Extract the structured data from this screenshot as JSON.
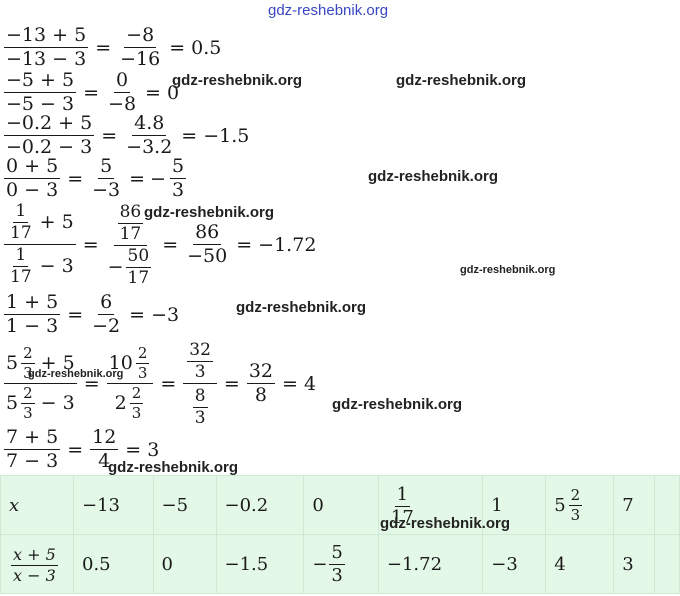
{
  "watermarks": {
    "top": "gdz-reshebnik.org",
    "w1": "gdz-reshebnik.org",
    "w2": "gdz-reshebnik.org",
    "w3": "gdz-reshebnik.org",
    "w4": "gdz-reshebnik.org",
    "w5": "gdz-reshebnik.org",
    "w6": "gdz-reshebnik.org",
    "w7": "gdz-reshebnik.org",
    "w8": "gdz-reshebnik.org",
    "w9": "gdz-reshebnik.org",
    "w10": "gdz-reshebnik.org"
  },
  "equations": {
    "e1": {
      "n1": "−13 + 5",
      "d1": "−13 − 3",
      "n2": "−8",
      "d2": "−16",
      "result": "= 0.5"
    },
    "e2": {
      "n1": "−5 + 5",
      "d1": "−5 − 3",
      "n2": "0",
      "d2": "−8",
      "result": "= 0"
    },
    "e3": {
      "n1": "−0.2 + 5",
      "d1": "−0.2 − 3",
      "n2": "4.8",
      "d2": "−3.2",
      "result": "= −1.5"
    },
    "e4": {
      "n1": "0 + 5",
      "d1": "0 − 3",
      "n2": "5",
      "d2": "−3",
      "neg": "−",
      "n3": "5",
      "d3": "3"
    },
    "e5": {
      "a_n": "1",
      "a_d": "17",
      "a_plus": "+ 5",
      "b_n": "1",
      "b_d": "17",
      "b_minus": "− 3",
      "c_n": "86",
      "c_d": "17",
      "c_neg": "−",
      "c2_n": "50",
      "c2_d": "17",
      "d_n": "86",
      "d_d": "−50",
      "result": "= −1.72"
    },
    "e6": {
      "n1": "1 + 5",
      "d1": "1 − 3",
      "n2": "6",
      "d2": "−2",
      "result": "= −3"
    },
    "e7": {
      "w1": "5",
      "f1n": "2",
      "f1d": "3",
      "plus": "+ 5",
      "w2": "5",
      "f2n": "2",
      "f2d": "3",
      "minus": "− 3",
      "w3": "10",
      "f3n": "2",
      "f3d": "3",
      "w4": "2",
      "f4n": "2",
      "f4d": "3",
      "g_nn": "32",
      "g_nd": "3",
      "g_dn": "8",
      "g_dd": "3",
      "h_n": "32",
      "h_d": "8",
      "result": "= 4"
    },
    "e8": {
      "n1": "7 + 5",
      "d1": "7 − 3",
      "n2": "12",
      "d2": "4",
      "result": "= 3"
    }
  },
  "table": {
    "row1_label": "x",
    "row1": [
      "−13",
      "−5",
      "−0.2",
      "0",
      "",
      "1",
      "",
      "7",
      ""
    ],
    "r1_frac": {
      "n": "1",
      "d": "17"
    },
    "r1_mixed": {
      "w": "5",
      "n": "2",
      "d": "3"
    },
    "row2_label_num": "x + 5",
    "row2_label_den": "x − 3",
    "row2": [
      "0.5",
      "0",
      "−1.5",
      "",
      "−1.72",
      "−3",
      "4",
      "3",
      ""
    ],
    "r2_frac": {
      "neg": "−",
      "n": "5",
      "d": "3"
    }
  }
}
